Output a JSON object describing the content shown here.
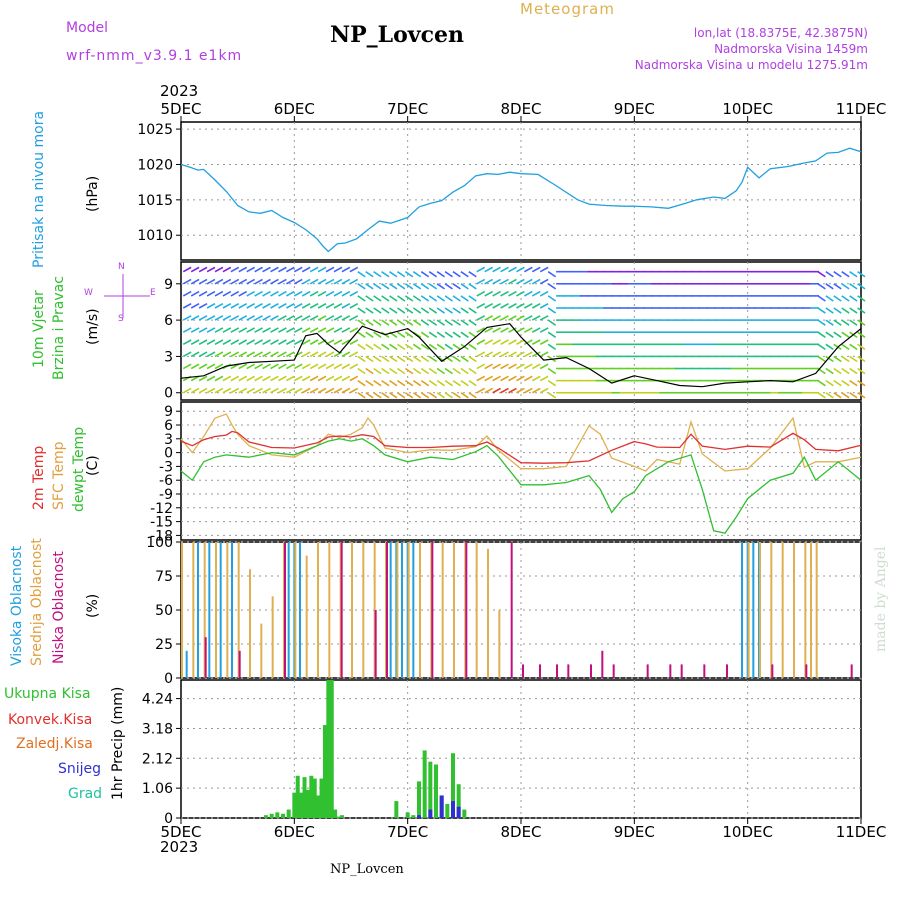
{
  "header": {
    "model_label": "Model",
    "model_name": "wrf-nmm_v3.9.1 e1km",
    "title": "NP_Lovcen",
    "meteogram": "Meteogram",
    "lonlat": "lon,lat (18.8375E, 42.3875N)",
    "altitude": "Nadmorska Visina 1459m",
    "model_altitude": "Nadmorska Visina u modelu 1275.91m",
    "footer": "NP_Lovcen",
    "watermark": "made by Angel"
  },
  "colors": {
    "purple": "#b040e0",
    "gold": "#e0b050",
    "cyan": "#20a0e0",
    "green": "#30c030",
    "red": "#e03030",
    "orange": "#e07020",
    "blue": "#3030d0",
    "teal": "#20c0a0",
    "magenta": "#c01080"
  },
  "time_axis": {
    "year": "2023",
    "ticks": [
      "5DEC",
      "6DEC",
      "7DEC",
      "8DEC",
      "9DEC",
      "10DEC",
      "11DEC"
    ]
  },
  "panels": {
    "pressure": {
      "label1": "Pritisak na nivou mora",
      "label2": "(hPa)"
    },
    "wind": {
      "label1": "10m Vjetar",
      "label2": "Brzina i Pravac",
      "label3": "(m/s)",
      "compass_n": "N",
      "compass_s": "S",
      "compass_w": "W",
      "compass_e": "E"
    },
    "temp": {
      "label1": "2m Temp",
      "label2": "SFC Temp",
      "label3": "dewpt Temp",
      "label4": "(C)"
    },
    "cloud": {
      "label1": "Visoka Oblacnost",
      "label2": "Srednja Oblacnost",
      "label3": "Niska Oblacnost",
      "label4": "(%)"
    },
    "precip": {
      "label1": "1hr Precip (mm)",
      "legend": [
        "Ukupna Kisa",
        "Konvek.Kisa",
        "Zaledj.Kisa",
        "Snijeg",
        "Grad"
      ]
    }
  },
  "chart_data": [
    {
      "type": "line",
      "panel": "pressure",
      "x_unit": "days since 5DEC 00UTC",
      "ylim": [
        1006.5,
        1026
      ],
      "yticks": [
        1010,
        1015,
        1020,
        1025
      ],
      "series": [
        {
          "name": "Pressure",
          "x": [
            0,
            0.08,
            0.15,
            0.2,
            0.3,
            0.4,
            0.5,
            0.6,
            0.7,
            0.8,
            0.9,
            1.0,
            1.1,
            1.2,
            1.25,
            1.3,
            1.38,
            1.45,
            1.55,
            1.65,
            1.75,
            1.85,
            2.0,
            2.1,
            2.2,
            2.3,
            2.4,
            2.5,
            2.6,
            2.7,
            2.8,
            2.9,
            3.0,
            3.15,
            3.3,
            3.5,
            3.6,
            3.75,
            3.9,
            4.0,
            4.15,
            4.3,
            4.45,
            4.55,
            4.7,
            4.8,
            4.9,
            4.95,
            5.0,
            5.1,
            5.2,
            5.35,
            5.5,
            5.6,
            5.7,
            5.8,
            5.9,
            6.0
          ],
          "y": [
            1020,
            1019.6,
            1019.2,
            1019.3,
            1017.8,
            1016.2,
            1014.2,
            1013.3,
            1013.1,
            1013.5,
            1012.5,
            1011.8,
            1010.8,
            1009.5,
            1008.5,
            1007.7,
            1008.8,
            1008.9,
            1009.5,
            1010.8,
            1012.0,
            1011.7,
            1012.5,
            1014.0,
            1014.5,
            1014.9,
            1016.1,
            1017.0,
            1018.4,
            1018.7,
            1018.6,
            1018.9,
            1018.7,
            1018.6,
            1017.1,
            1015.0,
            1014.4,
            1014.2,
            1014.1,
            1014.1,
            1014.0,
            1013.8,
            1014.5,
            1015.0,
            1015.4,
            1015.2,
            1016.3,
            1017.5,
            1019.6,
            1018.1,
            1019.4,
            1019.7,
            1020.2,
            1020.5,
            1021.6,
            1021.7,
            1022.3,
            1021.8
          ]
        }
      ]
    },
    {
      "type": "line",
      "panel": "wind_speed",
      "x_unit": "days since 5DEC 00UTC",
      "ylim": [
        -0.6,
        10.8
      ],
      "yticks": [
        0,
        3,
        6,
        9
      ],
      "series": [
        {
          "name": "Wind speed",
          "x": [
            0,
            0.2,
            0.4,
            0.6,
            0.8,
            1.0,
            1.1,
            1.2,
            1.3,
            1.4,
            1.6,
            1.8,
            2.0,
            2.1,
            2.3,
            2.5,
            2.7,
            2.9,
            3.0,
            3.2,
            3.4,
            3.6,
            3.8,
            4.0,
            4.2,
            4.4,
            4.6,
            4.8,
            5.0,
            5.2,
            5.4,
            5.6,
            5.8,
            6.0
          ],
          "y": [
            1.2,
            1.4,
            2.2,
            2.5,
            2.6,
            2.7,
            4.7,
            4.9,
            4.0,
            3.3,
            5.5,
            4.8,
            5.3,
            4.6,
            2.6,
            3.8,
            5.4,
            5.7,
            4.6,
            2.7,
            2.9,
            2.0,
            0.8,
            1.4,
            1.0,
            0.6,
            0.5,
            0.8,
            0.9,
            1.0,
            0.9,
            1.6,
            3.8,
            5.3
          ]
        }
      ]
    },
    {
      "type": "line",
      "panel": "temperature",
      "x_unit": "days since 5DEC 00UTC",
      "ylim": [
        -19,
        11
      ],
      "yticks": [
        9,
        6,
        3,
        0,
        -3,
        -6,
        -9,
        -12,
        -15,
        -18
      ],
      "series": [
        {
          "name": "2m Temp",
          "x": [
            0,
            0.1,
            0.2,
            0.3,
            0.4,
            0.45,
            0.5,
            0.6,
            0.8,
            1.0,
            1.2,
            1.3,
            1.4,
            1.5,
            1.6,
            1.7,
            1.8,
            2.0,
            2.2,
            2.4,
            2.6,
            2.7,
            2.8,
            3.0,
            3.2,
            3.4,
            3.6,
            3.8,
            4.0,
            4.1,
            4.2,
            4.4,
            4.5,
            4.6,
            4.8,
            5.0,
            5.2,
            5.4,
            5.5,
            5.6,
            5.8,
            6.0
          ],
          "y": [
            2.5,
            1.5,
            2.8,
            3.5,
            3.8,
            4.6,
            4.3,
            2.3,
            1.1,
            1.0,
            2.1,
            3.4,
            3.6,
            3.4,
            3.9,
            3.5,
            1.5,
            1.1,
            1.1,
            1.4,
            1.5,
            2.3,
            1.0,
            -2.2,
            -2.3,
            -2.2,
            -1.8,
            0.5,
            2.4,
            1.9,
            1.2,
            1.1,
            4.0,
            1.4,
            0.7,
            1.4,
            1.2,
            4.2,
            2.8,
            0.7,
            0.4,
            1.6
          ]
        },
        {
          "name": "SFC Temp",
          "x": [
            0,
            0.1,
            0.2,
            0.3,
            0.4,
            0.45,
            0.5,
            0.6,
            0.8,
            1.0,
            1.2,
            1.3,
            1.4,
            1.5,
            1.6,
            1.65,
            1.7,
            1.8,
            2.0,
            2.2,
            2.4,
            2.6,
            2.7,
            2.8,
            3.0,
            3.2,
            3.4,
            3.6,
            3.7,
            3.8,
            4.0,
            4.1,
            4.2,
            4.4,
            4.5,
            4.6,
            4.8,
            5.0,
            5.2,
            5.4,
            5.5,
            5.6,
            5.8,
            6.0
          ],
          "y": [
            3.0,
            0.0,
            3.5,
            7.5,
            8.4,
            6.0,
            4.0,
            1.5,
            -0.5,
            -1.0,
            1.5,
            4.0,
            3.3,
            4.0,
            5.4,
            7.5,
            6.0,
            1.0,
            0.0,
            0.6,
            0.5,
            1.3,
            3.6,
            0.5,
            -3.5,
            -3.5,
            -3.0,
            5.8,
            4.0,
            -1.2,
            -3.0,
            -4.0,
            -1.5,
            -2.5,
            6.7,
            -0.3,
            -4.0,
            -3.5,
            1.0,
            7.5,
            -3.2,
            -2.0,
            -2.0,
            -1.0
          ]
        },
        {
          "name": "dewpt Temp",
          "x": [
            0,
            0.1,
            0.2,
            0.3,
            0.4,
            0.6,
            0.8,
            1.0,
            1.2,
            1.3,
            1.4,
            1.5,
            1.6,
            1.7,
            1.8,
            2.0,
            2.2,
            2.4,
            2.6,
            2.7,
            2.8,
            3.0,
            3.2,
            3.4,
            3.6,
            3.7,
            3.8,
            3.9,
            4.0,
            4.1,
            4.3,
            4.5,
            4.6,
            4.7,
            4.8,
            4.9,
            5.0,
            5.2,
            5.4,
            5.5,
            5.6,
            5.8,
            6.0
          ],
          "y": [
            -4.0,
            -6.0,
            -2.0,
            -1.0,
            -0.5,
            -1.0,
            0.0,
            -0.5,
            1.5,
            2.5,
            3.0,
            2.5,
            3.0,
            1.5,
            -0.5,
            -2.0,
            -1.0,
            -1.5,
            0.2,
            1.5,
            -0.8,
            -7.0,
            -7.0,
            -6.5,
            -5.0,
            -8.0,
            -13.0,
            -10.0,
            -8.5,
            -5.0,
            -2.0,
            -0.5,
            -8.0,
            -17.0,
            -17.5,
            -14.0,
            -10.0,
            -6.0,
            -4.5,
            -1.0,
            -6.0,
            -2.0,
            -6.0
          ]
        }
      ]
    },
    {
      "type": "bar",
      "panel": "cloud_cover",
      "x_unit": "days since 5DEC 00UTC",
      "ylim": [
        0,
        100
      ],
      "yticks": [
        0,
        25,
        50,
        75,
        100
      ],
      "series": [
        {
          "name": "Visoka Oblacnost",
          "x": [
            0.05,
            0.15,
            0.25,
            0.35,
            0.45,
            0.95,
            1.0,
            1.05,
            1.85,
            1.9,
            1.95,
            2.0,
            2.05,
            4.95,
            5.0,
            5.05,
            5.1
          ],
          "values": [
            20,
            100,
            100,
            100,
            100,
            100,
            100,
            100,
            100,
            100,
            100,
            100,
            100,
            100,
            100,
            100,
            100
          ]
        },
        {
          "name": "Srednja Oblacnost",
          "x": [
            0.0,
            0.1,
            0.2,
            0.3,
            0.4,
            0.5,
            0.6,
            0.7,
            0.8,
            0.9,
            1.0,
            1.1,
            1.2,
            1.3,
            1.4,
            1.5,
            1.6,
            1.7,
            1.8,
            1.9,
            2.0,
            2.1,
            2.2,
            2.3,
            2.4,
            2.5,
            2.6,
            2.7,
            2.8,
            5.0,
            5.1,
            5.2,
            5.3,
            5.4,
            5.5,
            5.55,
            5.6
          ],
          "values": [
            100,
            100,
            100,
            100,
            100,
            100,
            80,
            40,
            60,
            100,
            100,
            90,
            100,
            100,
            100,
            100,
            100,
            100,
            100,
            100,
            100,
            100,
            100,
            100,
            100,
            100,
            100,
            95,
            50,
            100,
            100,
            100,
            100,
            100,
            100,
            100,
            100
          ]
        },
        {
          "name": "Niska Oblacnost",
          "x": [
            0.2,
            0.5,
            0.9,
            1.4,
            1.7,
            1.8,
            2.2,
            2.5,
            2.9,
            3.0,
            3.15,
            3.3,
            3.4,
            3.6,
            3.7,
            3.8,
            4.1,
            4.3,
            4.4,
            4.6,
            4.8,
            5.2,
            5.5,
            5.9
          ],
          "values": [
            30,
            20,
            100,
            100,
            50,
            100,
            100,
            100,
            100,
            10,
            10,
            10,
            10,
            10,
            20,
            10,
            10,
            10,
            10,
            10,
            10,
            10,
            10,
            10
          ]
        }
      ]
    },
    {
      "type": "bar",
      "panel": "precipitation",
      "x_unit": "days since 5DEC 00UTC",
      "ylim": [
        0,
        4.9
      ],
      "yticks": [
        0,
        1.06,
        2.12,
        3.18,
        4.24
      ],
      "series": [
        {
          "name": "Ukupna Kisa",
          "x": [
            0.75,
            0.8,
            0.85,
            0.9,
            0.95,
            1.0,
            1.03,
            1.06,
            1.09,
            1.12,
            1.15,
            1.18,
            1.21,
            1.24,
            1.27,
            1.3,
            1.33,
            1.36,
            1.39,
            1.42,
            1.9,
            2.0,
            2.05,
            2.1,
            2.15,
            2.2,
            2.25,
            2.3,
            2.35,
            2.4,
            2.45,
            2.5
          ],
          "values": [
            0.1,
            0.15,
            0.2,
            0.15,
            0.3,
            0.9,
            1.5,
            0.9,
            1.45,
            1.0,
            1.5,
            1.4,
            0.8,
            1.4,
            3.3,
            4.9,
            4.9,
            0.3,
            0.05,
            0.1,
            0.6,
            0.2,
            0.1,
            1.3,
            2.4,
            2.0,
            1.9,
            0.8,
            0.5,
            2.3,
            1.2,
            0.3
          ]
        },
        {
          "name": "Snijeg",
          "x": [
            2.1,
            2.2,
            2.3,
            2.4,
            2.45
          ],
          "values": [
            0.1,
            0.3,
            0.8,
            0.6,
            0.4
          ]
        }
      ]
    }
  ]
}
